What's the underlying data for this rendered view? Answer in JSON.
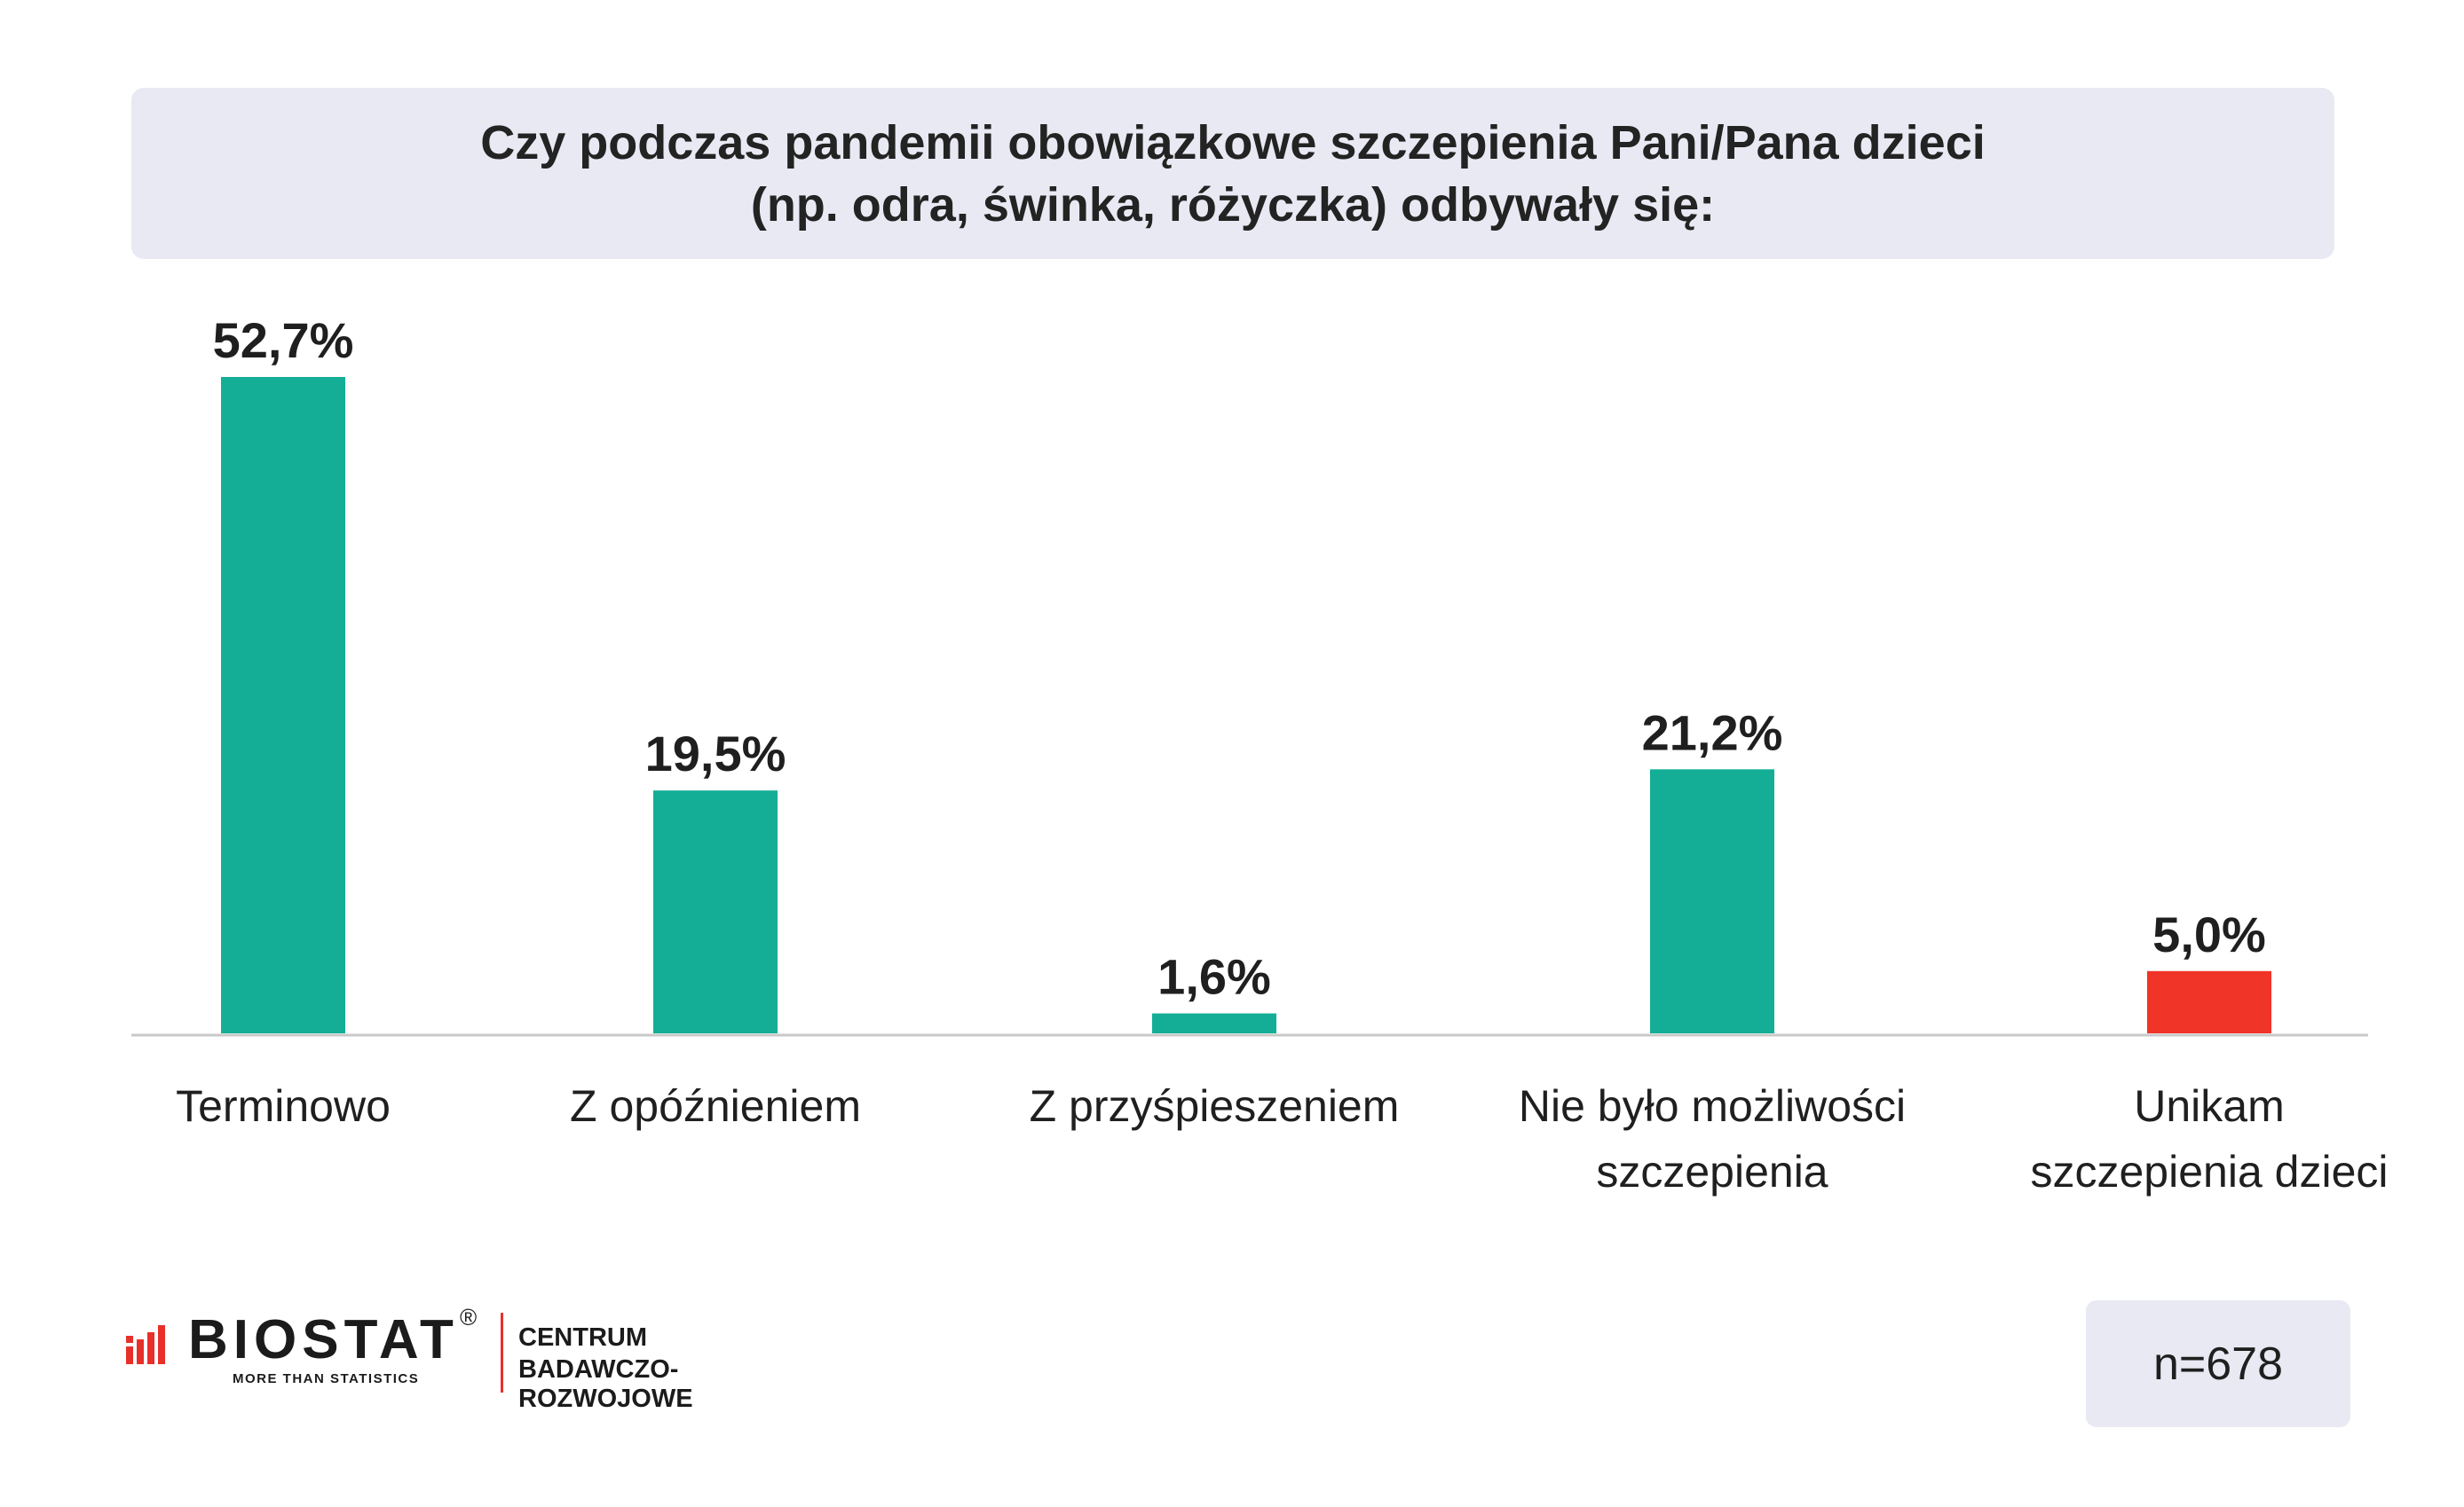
{
  "title": {
    "line1": "Czy podczas pandemii obowiązkowe szczepienia Pani/Pana dzieci",
    "line2": "(np. odra, świnka, różyczka) odbywały się:"
  },
  "chart_data": {
    "type": "bar",
    "categories": [
      [
        "Terminowo"
      ],
      [
        "Z opóźnieniem"
      ],
      [
        "Z przyśpieszeniem"
      ],
      [
        "Nie było możliwości",
        "szczepienia"
      ],
      [
        "Unikam",
        "szczepienia dzieci"
      ]
    ],
    "values": [
      52.7,
      19.5,
      1.6,
      21.2,
      5.0
    ],
    "value_labels": [
      "52,7%",
      "19,5%",
      "1,6%",
      "21,2%",
      "5,0%"
    ],
    "bar_colors": [
      "#13ae95",
      "#13ae95",
      "#13ae95",
      "#13ae95",
      "#f03428"
    ],
    "ylim": [
      0,
      52.7
    ],
    "grid": false,
    "legend": "none"
  },
  "logo": {
    "brand": "BIOSTAT",
    "registered": "®",
    "tagline": "MORE THAN STATISTICS",
    "center_line1": "CENTRUM",
    "center_line2": "BADAWCZO-ROZWOJOWE"
  },
  "sample_size": "n=678",
  "colors": {
    "bar_primary": "#13ae95",
    "bar_highlight": "#f03428",
    "title_bg": "#e8e9f3",
    "logo_accent": "#e8302a"
  }
}
